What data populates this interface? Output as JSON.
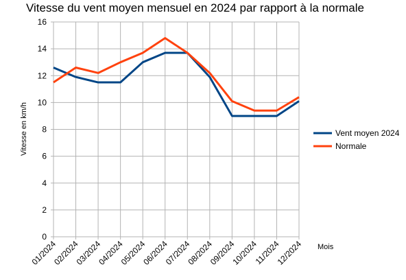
{
  "chart_data": {
    "type": "line",
    "title": "Vitesse du vent moyen mensuel en 2024 par rapport à la normale",
    "xlabel": "Mois",
    "ylabel": "Vitesse en km/h",
    "categories": [
      "01/2024",
      "02/2024",
      "03/2024",
      "04/2024",
      "05/2024",
      "06/2024",
      "07/2024",
      "08/2024",
      "09/2024",
      "10/2024",
      "11/2024",
      "12/2024"
    ],
    "ylim": [
      0,
      16
    ],
    "yticks": [
      "0",
      "2",
      "4",
      "6",
      "8",
      "10",
      "12",
      "14",
      "16"
    ],
    "grid": true,
    "legend_position": "right",
    "series": [
      {
        "name": "Vent moyen 2024",
        "color": "#004586",
        "values": [
          12.6,
          11.9,
          11.5,
          11.5,
          13.0,
          13.7,
          13.7,
          11.9,
          9.0,
          9.0,
          9.0,
          10.1
        ]
      },
      {
        "name": "Normale",
        "color": "#ff420e",
        "values": [
          11.5,
          12.6,
          12.2,
          13.0,
          13.7,
          14.8,
          13.7,
          12.2,
          10.1,
          9.4,
          9.4,
          10.4
        ]
      }
    ]
  }
}
